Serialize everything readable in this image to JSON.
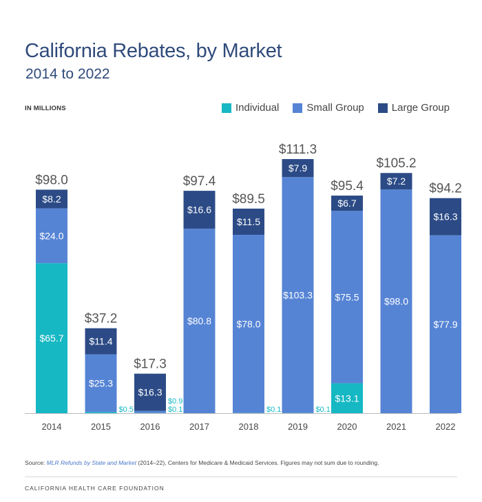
{
  "title": "California Rebates, by Market",
  "subtitle": "2014 to 2022",
  "units_label": "IN MILLIONS",
  "source": {
    "prefix": "Source: ",
    "citation": "MLR Refunds by State and Market",
    "suffix": " (2014–22), Centers for Medicare & Medicaid Services. Figures may not sum due to rounding."
  },
  "footer": "CALIFORNIA HEALTH CARE FOUNDATION",
  "colors": {
    "Individual": "#16b8c4",
    "Small Group": "#5684d5",
    "Large Group": "#2c4b86"
  },
  "chart_data": {
    "type": "bar",
    "stacked": true,
    "categories": [
      "2014",
      "2015",
      "2016",
      "2017",
      "2018",
      "2019",
      "2020",
      "2021",
      "2022"
    ],
    "series": [
      {
        "name": "Individual",
        "values": [
          65.7,
          0.5,
          0.1,
          0,
          0.1,
          0.1,
          13.1,
          0,
          0
        ]
      },
      {
        "name": "Small Group",
        "values": [
          24.0,
          25.3,
          0.9,
          80.8,
          78.0,
          103.3,
          75.5,
          98.0,
          77.9
        ]
      },
      {
        "name": "Large Group",
        "values": [
          8.2,
          11.4,
          16.3,
          16.6,
          11.5,
          7.9,
          6.7,
          7.2,
          16.3
        ]
      }
    ],
    "totals": [
      98.0,
      37.2,
      17.3,
      97.4,
      89.5,
      111.3,
      95.4,
      105.2,
      94.2
    ],
    "segment_labels": [
      [
        "$65.7",
        "$24.0",
        "$8.2"
      ],
      [
        "$0.5",
        "$25.3",
        "$11.4"
      ],
      [
        "$0.1",
        "$0.9",
        "$16.3"
      ],
      [
        "",
        "$80.8",
        "$16.6"
      ],
      [
        "$0.1",
        "$78.0",
        "$11.5"
      ],
      [
        "$0.1",
        "$103.3",
        "$7.9"
      ],
      [
        "$13.1",
        "$75.5",
        "$6.7"
      ],
      [
        "",
        "$98.0",
        "$7.2"
      ],
      [
        "",
        "$77.9",
        "$16.3"
      ]
    ],
    "total_labels": [
      "$98.0",
      "$37.2",
      "$17.3",
      "$97.4",
      "$89.5",
      "$111.3",
      "$95.4",
      "$105.2",
      "$94.2"
    ],
    "ylim": [
      0,
      115
    ],
    "legend_position": "top-right",
    "grid": false
  }
}
